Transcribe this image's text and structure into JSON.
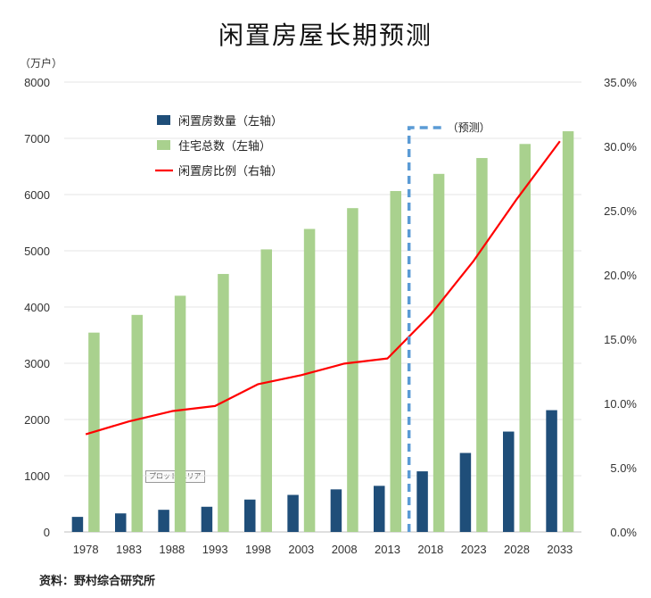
{
  "title": "闲置房屋长期预测",
  "y_unit_label": "（万户）",
  "source": "资料：野村综合研究所",
  "forecast_note": "（预测）",
  "plot_area_tag": "プロット エリア",
  "colors": {
    "vacant": "#1f4e79",
    "total": "#a9d18e",
    "ratio": "#ff0000",
    "forecast_box": "#5b9bd5"
  },
  "chart_data": {
    "type": "bar",
    "categories": [
      "1978",
      "1983",
      "1988",
      "1993",
      "1998",
      "2003",
      "2008",
      "2013",
      "2018",
      "2023",
      "2028",
      "2033"
    ],
    "series": [
      {
        "name": "闲置房数量（左轴）",
        "kind": "bar",
        "axis": "left",
        "values": [
          268,
          330,
          394,
          448,
          576,
          659,
          757,
          820,
          1078,
          1405,
          1785,
          2166
        ]
      },
      {
        "name": "住宅总数（左轴）",
        "kind": "bar",
        "axis": "left",
        "values": [
          3545,
          3860,
          4201,
          4588,
          5025,
          5389,
          5759,
          6063,
          6368,
          6650,
          6900,
          7126
        ]
      },
      {
        "name": "闲置房比例（右轴）",
        "kind": "line",
        "axis": "right",
        "values": [
          7.6,
          8.6,
          9.4,
          9.8,
          11.5,
          12.2,
          13.1,
          13.5,
          16.9,
          21.1,
          25.9,
          30.4
        ]
      }
    ],
    "y_left": {
      "min": 0,
      "max": 8000,
      "ticks": [
        "0",
        "1000",
        "2000",
        "3000",
        "4000",
        "5000",
        "6000",
        "7000",
        "8000"
      ]
    },
    "y_right": {
      "min": 0,
      "max": 35,
      "ticks": [
        "0.0%",
        "5.0%",
        "10.0%",
        "15.0%",
        "20.0%",
        "25.0%",
        "30.0%",
        "35.0%"
      ]
    },
    "grid": true,
    "legend_position": "top-left",
    "forecast_start_index": 8
  }
}
